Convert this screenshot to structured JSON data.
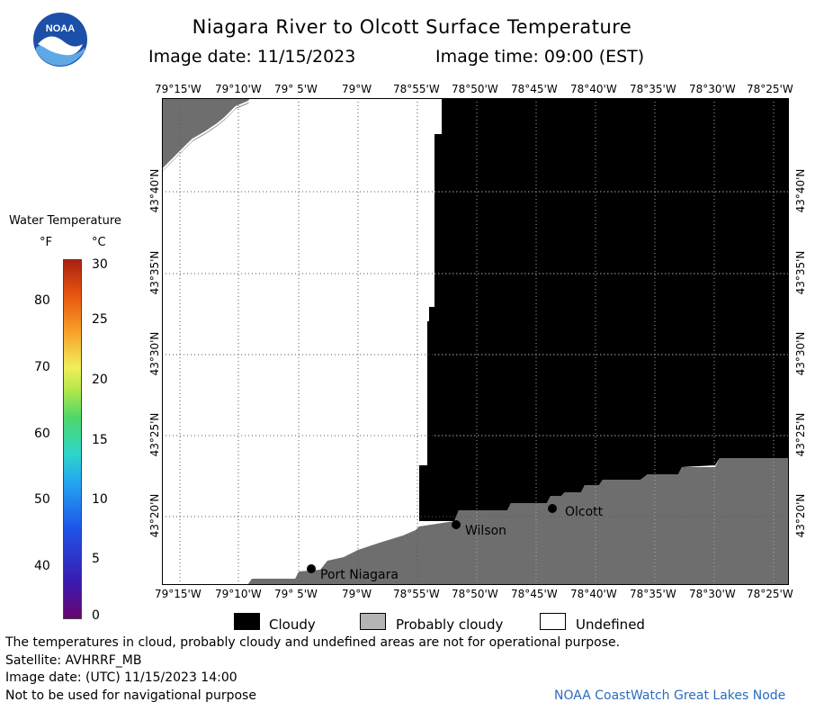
{
  "header": {
    "title": "Niagara River to Olcott Surface Temperature",
    "image_date": "Image date: 11/15/2023",
    "image_time": "Image time: 09:00 (EST)"
  },
  "logo": {
    "text": "NOAA",
    "icon": "noaa-logo-icon"
  },
  "map": {
    "lon_labels": [
      "79°15'W",
      "79°10'W",
      "79° 5'W",
      "79°W",
      "78°55'W",
      "78°50'W",
      "78°45'W",
      "78°40'W",
      "78°35'W",
      "78°30'W",
      "78°25'W"
    ],
    "lat_labels": [
      "43°40'N",
      "43°35'N",
      "43°30'N",
      "43°25'N",
      "43°20'N"
    ],
    "places": [
      "Port Niagara",
      "Wilson",
      "Olcott"
    ],
    "colors": {
      "cloudy": "#000000",
      "probably_cloudy": "#6e6e6e",
      "undefined": "#ffffff",
      "grid": "#555555"
    }
  },
  "legend": {
    "title": "Water Temperature",
    "unit_f": "°F",
    "unit_c": "°C",
    "f_ticks": [
      "80",
      "70",
      "60",
      "50",
      "40"
    ],
    "c_ticks": [
      "30",
      "25",
      "20",
      "15",
      "10",
      "5",
      "0"
    ],
    "categories": [
      "Cloudy",
      "Probably cloudy",
      "Undefined"
    ]
  },
  "footer": {
    "lines": [
      "The temperatures in cloud, probably cloudy and undefined areas are not for operational purpose.",
      "Satellite: AVHRRF_MB",
      "Image date: (UTC) 11/15/2023  14:00",
      "Not to be used for navigational purpose"
    ],
    "credit": "NOAA CoastWatch Great Lakes Node"
  }
}
